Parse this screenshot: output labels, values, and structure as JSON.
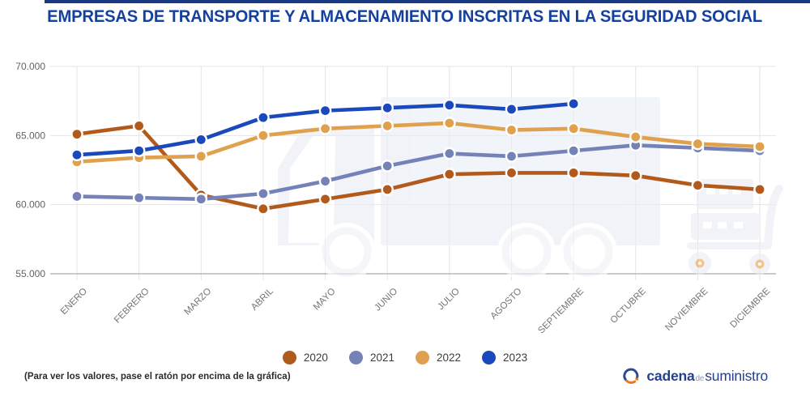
{
  "page": {
    "title": "EMPRESAS DE TRANSPORTE Y ALMACENAMIENTO INSCRITAS EN LA SEGURIDAD SOCIAL"
  },
  "chart_data": {
    "type": "line",
    "title": "EMPRESAS DE TRANSPORTE Y ALMACENAMIENTO INSCRITAS EN LA SEGURIDAD SOCIAL",
    "categories": [
      "ENERO",
      "FEBRERO",
      "MARZO",
      "ABRIL",
      "MAYO",
      "JUNIO",
      "JULIO",
      "AGOSTO",
      "SEPTIEMBRE",
      "OCTUBRE",
      "NOVIEMBRE",
      "DICIEMBRE"
    ],
    "y_ticks": [
      "70.000",
      "65.000",
      "60.000",
      "55.000"
    ],
    "ylim": [
      55000,
      70000
    ],
    "grid": true,
    "legend_position": "bottom",
    "series": [
      {
        "name": "2020",
        "color": "#b25a1b",
        "values": [
          65100,
          65700,
          60700,
          59700,
          60400,
          61100,
          62200,
          62300,
          62300,
          62100,
          61400,
          61100
        ]
      },
      {
        "name": "2021",
        "color": "#7482b7",
        "values": [
          60600,
          60500,
          60400,
          60800,
          61700,
          62800,
          63700,
          63500,
          63900,
          64300,
          64100,
          63900
        ]
      },
      {
        "name": "2022",
        "color": "#dfa14d",
        "values": [
          63100,
          63400,
          63500,
          65000,
          65500,
          65700,
          65900,
          65400,
          65500,
          64900,
          64400,
          64200
        ]
      },
      {
        "name": "2023",
        "color": "#1a49bb",
        "values": [
          63600,
          63900,
          64700,
          66300,
          66800,
          67000,
          67200,
          66900,
          67300,
          null,
          null,
          null
        ]
      }
    ]
  },
  "footer": {
    "note": "(Para ver los valores, pase el ratón por encima de la gráfica)",
    "logo": {
      "part1": "cadena",
      "part2": "de",
      "part3": "suministro"
    }
  }
}
